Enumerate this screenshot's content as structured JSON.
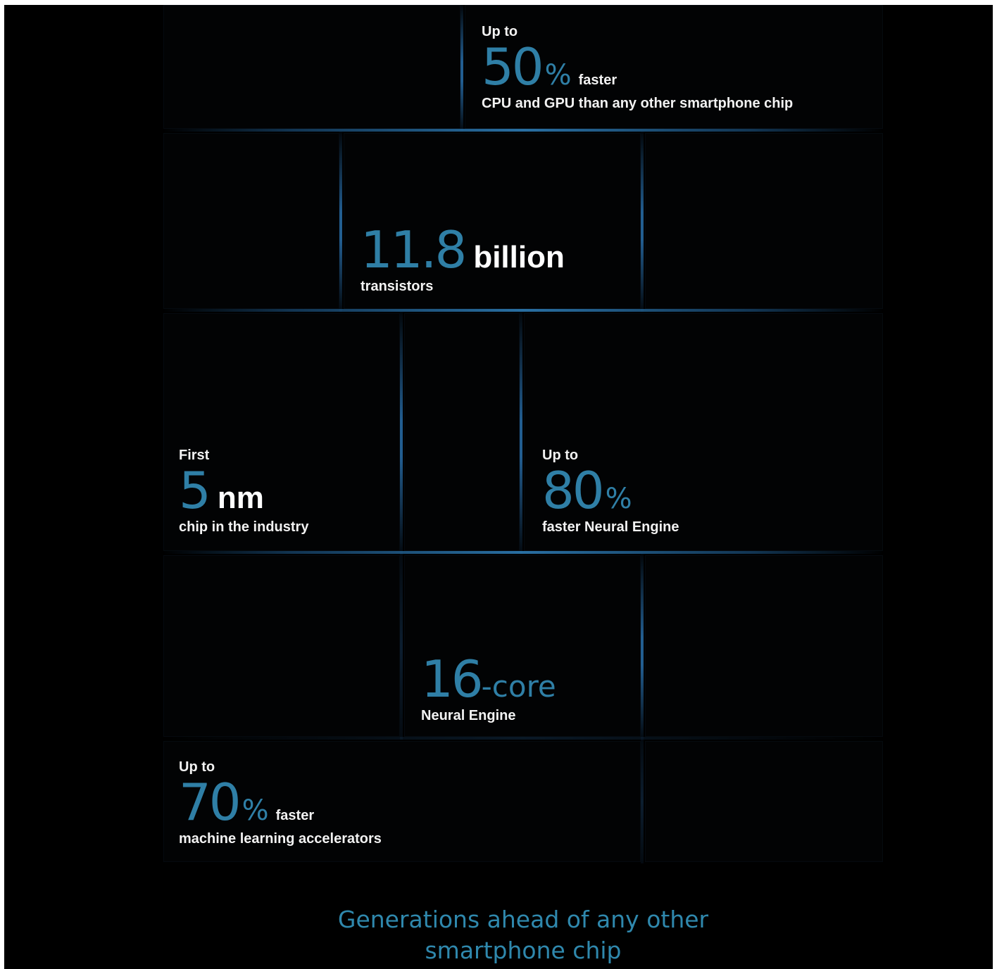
{
  "stats": {
    "cpu_gpu": {
      "prefix": "Up to",
      "value": "50",
      "unit": "%",
      "trail": "faster",
      "caption": "CPU and GPU than any other smartphone chip"
    },
    "transistors": {
      "value": "11.8",
      "unit": "billion",
      "caption": "transistors"
    },
    "process": {
      "prefix": "First",
      "value": "5",
      "unit": "nm",
      "caption": "chip in the industry"
    },
    "neural_speed": {
      "prefix": "Up to",
      "value": "80",
      "unit": "%",
      "caption": "faster Neural Engine"
    },
    "neural_cores": {
      "value": "16",
      "unit": "-core",
      "caption": "Neural Engine"
    },
    "ml": {
      "prefix": "Up to",
      "value": "70",
      "unit": "%",
      "trail": "faster",
      "caption": "machine learning accelerators"
    }
  },
  "tagline": {
    "line1": "Generations ahead of any other",
    "line2": "smartphone chip"
  },
  "colors": {
    "accent": "#2f7fa6",
    "background": "#000000",
    "line_glow": "#3082be"
  }
}
